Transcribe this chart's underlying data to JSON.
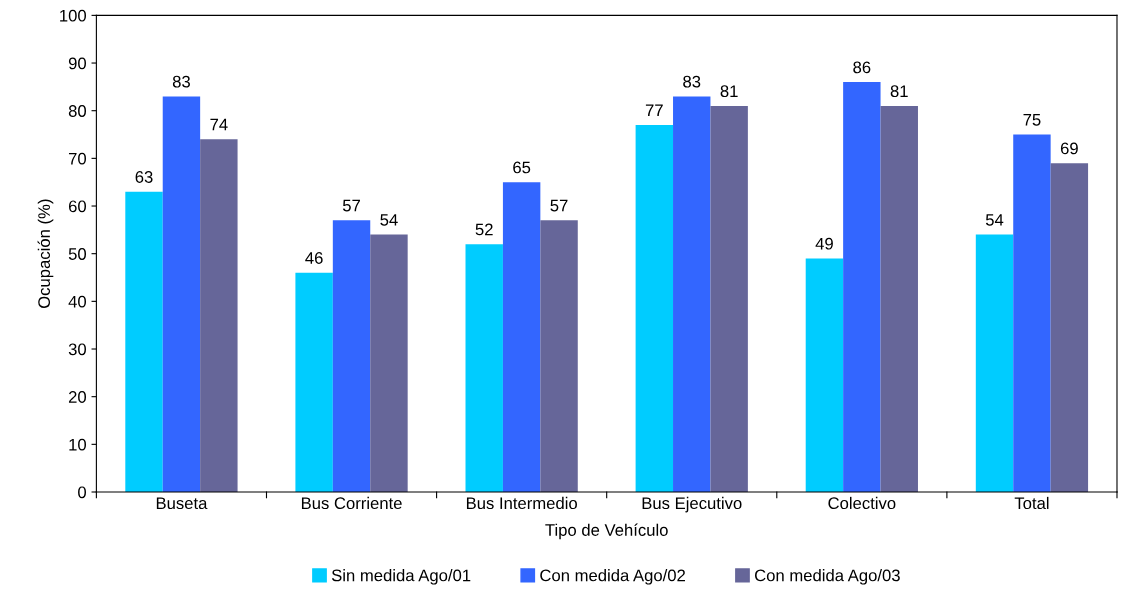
{
  "chart_data": {
    "type": "bar",
    "xlabel": "Tipo de Vehículo",
    "ylabel": "Ocupación (%)",
    "categories": [
      "Buseta",
      "Bus Corriente",
      "Bus Intermedio",
      "Bus Ejecutivo",
      "Colectivo",
      "Total"
    ],
    "series": [
      {
        "name": "Sin medida Ago/01",
        "color": "#00ccff",
        "values": [
          63,
          46,
          52,
          77,
          49,
          54
        ]
      },
      {
        "name": "Con medida Ago/02",
        "color": "#3366ff",
        "values": [
          83,
          57,
          65,
          83,
          86,
          75
        ]
      },
      {
        "name": "Con medida Ago/03",
        "color": "#666699",
        "values": [
          74,
          54,
          57,
          81,
          81,
          69
        ]
      }
    ],
    "ylim": [
      0,
      100
    ],
    "yticks": [
      0,
      10,
      20,
      30,
      40,
      50,
      60,
      70,
      80,
      90,
      100
    ],
    "data_labels": true,
    "grid": false,
    "legend": "bottom"
  }
}
